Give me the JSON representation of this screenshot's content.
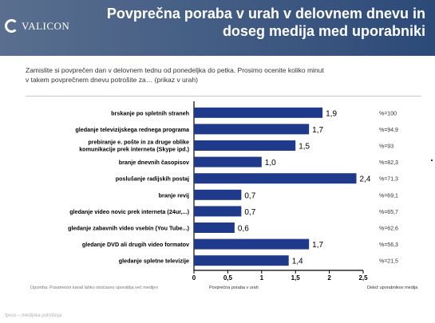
{
  "header": {
    "logo_text": "VALICON",
    "title_line1": "Povprečna poraba v urah v delovnem dnevu in",
    "title_line2": "doseg medija med uporabniki"
  },
  "question_line1": "Zamislite si povprečen dan v delovnem tednu od ponedeljka do petka. Prosimo ocenite koliko minut",
  "question_line2": "v takem povprečnem dnevu potrošite za… (prikaz v urah)",
  "footnote": "Opomba: Posamezni kanal lahko istočasno uporablja več medijev",
  "footer": "Ipsos – medijska potrošnja",
  "colors": {
    "bar": "#1f3a8a",
    "header": "#2c4a78"
  },
  "chart_data": {
    "type": "bar",
    "orientation": "horizontal",
    "categories": [
      "brskanje po spletnih straneh",
      "gledanje televizijskega rednega programa",
      "prebiranje e. pošte in za druge oblike komunikacije prek interneta (Skype ipd.)",
      "branje dnevnih časopisov",
      "poslušanje radijskih postaj",
      "branje revij",
      "gledanje video novic prek interneta (24ur,...)",
      "gledanje zabavnih video vsebin (You Tube...)",
      "gledanje DVD ali drugih video formatov",
      "gledanje spletne televizije"
    ],
    "values": [
      1.9,
      1.7,
      1.5,
      1.0,
      2.4,
      0.7,
      0.7,
      0.6,
      1.7,
      1.4
    ],
    "value_labels": [
      "1,9",
      "1,7",
      "1,5",
      "1,0",
      "2,4",
      "0,7",
      "0,7",
      "0,6",
      "1,7",
      "1,4"
    ],
    "reach_labels": [
      "%=100",
      "%=94,9",
      "%=93",
      "%=82,3",
      "%=71,3",
      "%=69,1",
      "%=65,7",
      "%=62,6",
      "%=56,3",
      "%=21,5"
    ],
    "xlim": [
      0,
      2.5
    ],
    "xticks": [
      "0",
      "0,5",
      "1",
      "1,5",
      "2",
      "2,5"
    ],
    "xlabel": "Povprečna poraba v urah",
    "reach_label": "Delež uporabnikov medija",
    "grid": false
  }
}
